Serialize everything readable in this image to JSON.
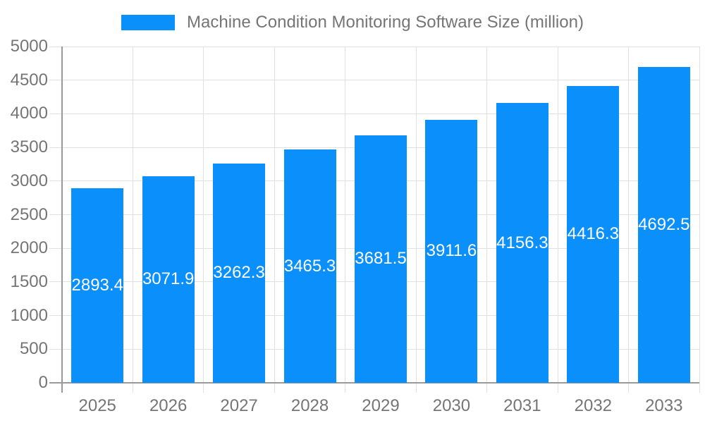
{
  "legend": {
    "label": "Machine Condition Monitoring Software Size (million)"
  },
  "colors": {
    "bar": "#0a8ffb",
    "grid": "#e0e0e0",
    "axis": "#999999",
    "tick_text": "#757575",
    "bar_label_text": "#ffffff",
    "background": "#ffffff"
  },
  "chart_data": {
    "type": "bar",
    "title": "Machine Condition Monitoring Software Size (million)",
    "categories": [
      "2025",
      "2026",
      "2027",
      "2028",
      "2029",
      "2030",
      "2031",
      "2032",
      "2033"
    ],
    "values": [
      2893.4,
      3071.9,
      3262.3,
      3465.3,
      3681.5,
      3911.6,
      4156.3,
      4416.3,
      4692.5
    ],
    "series": [
      {
        "name": "Machine Condition Monitoring Software Size (million)",
        "values": [
          2893.4,
          3071.9,
          3262.3,
          3465.3,
          3681.5,
          3911.6,
          4156.3,
          4416.3,
          4692.5
        ]
      }
    ],
    "xlabel": "",
    "ylabel": "",
    "ylim": [
      0,
      5000
    ],
    "ytick_step": 500,
    "ytick_labels": [
      "0",
      "500",
      "1000",
      "1500",
      "2000",
      "2500",
      "3000",
      "3500",
      "4000",
      "4500",
      "5000"
    ],
    "grid": true,
    "legend_position": "top",
    "value_label_position": "inside-center"
  }
}
